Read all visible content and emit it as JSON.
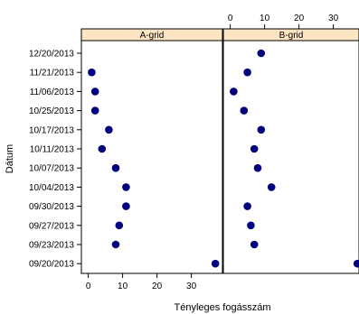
{
  "colors": {
    "strip_fill": "#fde4c3",
    "point": "#00007f",
    "frame": "#000000"
  },
  "chart_data": {
    "type": "scatter",
    "chart_style": "dot plot (lattice), two panels side by side",
    "xlabel": "Tényleges fogásszám",
    "ylabel": "Dátum",
    "xlim": [
      -2,
      38
    ],
    "x_ticks": [
      0,
      10,
      20,
      30
    ],
    "x_tick_labels": [
      "0",
      "10",
      "20",
      "30"
    ],
    "x_ticks_bottom_panel": "A-grid",
    "x_ticks_top_panel": "B-grid",
    "categories": [
      "12/20/2013",
      "11/21/2013",
      "11/06/2013",
      "10/25/2013",
      "10/17/2013",
      "10/11/2013",
      "10/07/2013",
      "10/04/2013",
      "09/30/2013",
      "09/27/2013",
      "09/23/2013",
      "09/20/2013"
    ],
    "series": [
      {
        "name": "A-grid",
        "values": [
          null,
          1,
          2,
          2,
          6,
          4,
          8,
          11,
          11,
          9,
          8,
          37
        ]
      },
      {
        "name": "B-grid",
        "values": [
          9,
          5,
          1,
          4,
          9,
          7,
          8,
          12,
          5,
          6,
          7,
          37
        ]
      }
    ],
    "grid": false,
    "legend": "none"
  }
}
